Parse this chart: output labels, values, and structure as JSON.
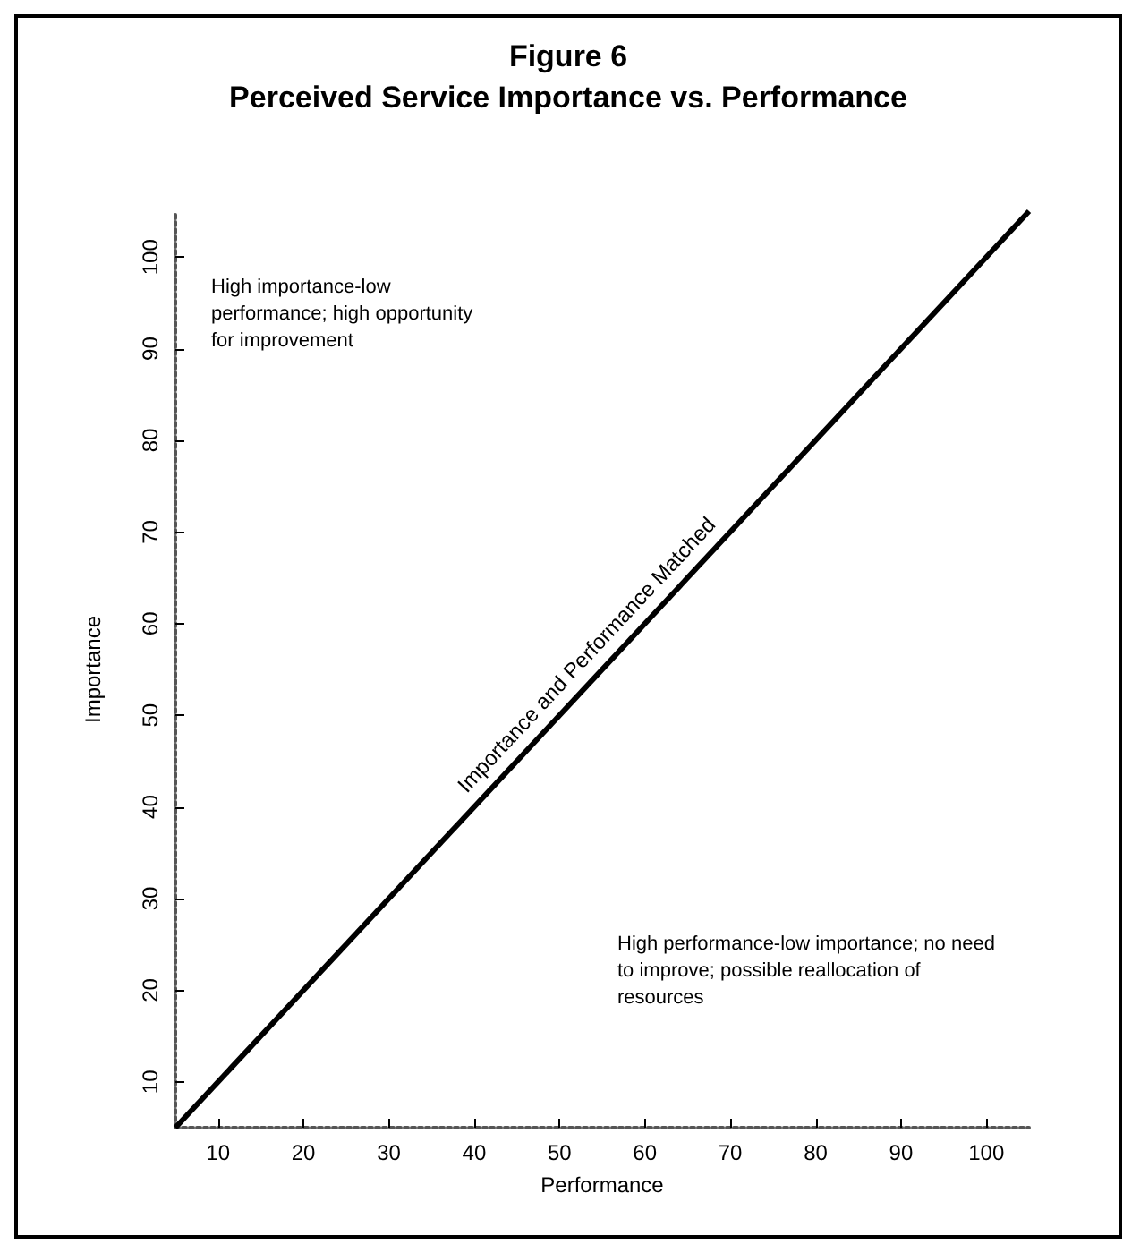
{
  "chart_data": {
    "type": "line",
    "title": "Figure 6",
    "subtitle": "Perceived Service Importance vs. Performance",
    "xlabel": "Performance",
    "ylabel": "Importance",
    "x": [
      5,
      105
    ],
    "series": [
      {
        "color": "#000000",
        "values": [
          5,
          105
        ]
      }
    ],
    "xlim": [
      5,
      105
    ],
    "ylim": [
      5,
      105
    ],
    "xticks": [
      10,
      20,
      30,
      40,
      50,
      60,
      70,
      80,
      90,
      100
    ],
    "yticks": [
      10,
      20,
      30,
      40,
      50,
      60,
      70,
      80,
      90,
      100
    ],
    "grid": false,
    "marker": "none",
    "line_style": "solid",
    "annotations": [
      {
        "text": "Importance and Performance Matched",
        "x": 55,
        "y": 55
      },
      "High importance-low performance; high opportunity for improvement",
      "High performance-low importance; no need to improve; possible reallocation of resources"
    ]
  }
}
